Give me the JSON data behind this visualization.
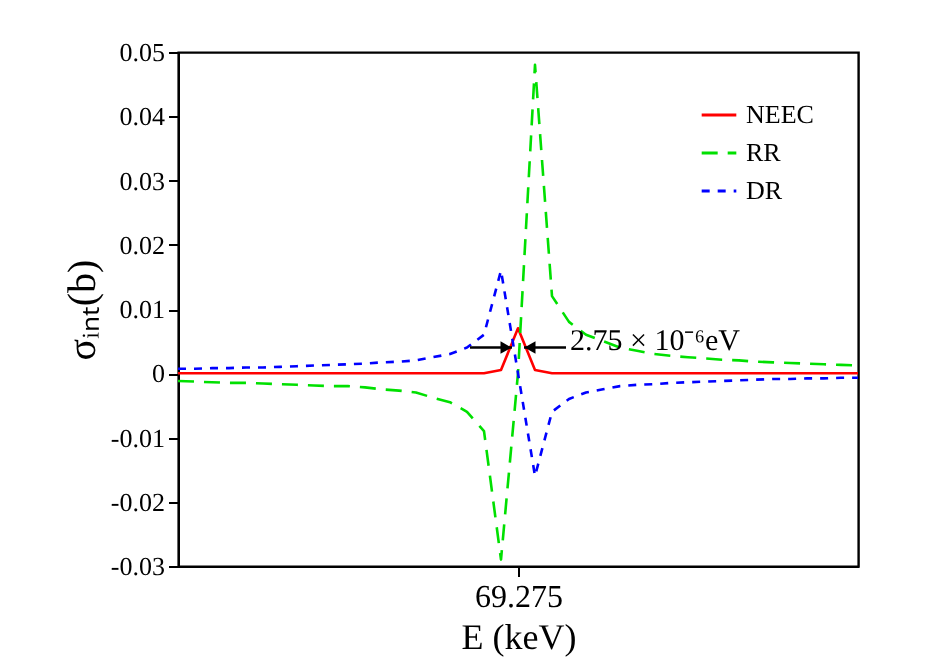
{
  "chart_data": {
    "type": "line",
    "xlabel": "E (keV)",
    "ylabel": "σᵢₙₜ(b)",
    "categories": [
      null,
      null,
      null,
      null,
      null,
      null,
      null,
      null,
      null,
      null,
      null,
      null,
      null,
      null,
      null,
      null,
      null,
      null,
      null,
      null,
      "69.275",
      null,
      null,
      null,
      null,
      null,
      null,
      null,
      null,
      null,
      null,
      null,
      null,
      null,
      null,
      null,
      null,
      null,
      null,
      null,
      null
    ],
    "series": [
      {
        "name": "NEEC",
        "color": "#ff0000",
        "line_style": "solid",
        "values": [
          0,
          0,
          0,
          0,
          0,
          0,
          0,
          0,
          0,
          0,
          0,
          0,
          0,
          0,
          0,
          0,
          0,
          0,
          0,
          0.0005,
          0.007,
          0.0005,
          0,
          0,
          0,
          0,
          0,
          0,
          0,
          0,
          0,
          0,
          0,
          0,
          0,
          0,
          0,
          0,
          0,
          0,
          0
        ]
      },
      {
        "name": "RR",
        "color": "#00e000",
        "line_style": "dashed",
        "values": [
          -0.0012,
          -0.0013,
          -0.0014,
          -0.0015,
          -0.0015,
          -0.0016,
          -0.0017,
          -0.0018,
          -0.0019,
          -0.002,
          -0.002,
          -0.0022,
          -0.0025,
          -0.0027,
          -0.003,
          -0.0038,
          -0.0045,
          -0.006,
          -0.009,
          -0.029,
          0,
          0.048,
          0.012,
          0.008,
          0.006,
          0.005,
          0.004,
          0.0035,
          0.003,
          0.0027,
          0.0025,
          0.0023,
          0.0021,
          0.002,
          0.0018,
          0.0017,
          0.0016,
          0.0015,
          0.0014,
          0.0013,
          0.0012
        ]
      },
      {
        "name": "DR",
        "color": "#0000ff",
        "line_style": "dotted",
        "values": [
          0.0007,
          0.0007,
          0.0008,
          0.0008,
          0.0009,
          0.0009,
          0.001,
          0.0011,
          0.0012,
          0.0013,
          0.0014,
          0.0015,
          0.0017,
          0.0018,
          0.002,
          0.0025,
          0.003,
          0.004,
          0.006,
          0.016,
          0,
          -0.016,
          -0.006,
          -0.004,
          -0.003,
          -0.0025,
          -0.002,
          -0.0018,
          -0.0017,
          -0.0015,
          -0.0014,
          -0.0013,
          -0.0012,
          -0.0011,
          -0.001,
          -0.0009,
          -0.0009,
          -0.0008,
          -0.0008,
          -0.0007,
          -0.0007
        ]
      }
    ],
    "ylim": [
      -0.03,
      0.05
    ],
    "yticks": [
      -0.03,
      -0.02,
      -0.01,
      0,
      0.01,
      0.02,
      0.03,
      0.04,
      0.05
    ],
    "annotations": [
      {
        "text": "2.75 × 10⁻⁶eV",
        "x": "69.275",
        "y": 0.004
      }
    ],
    "grid": false,
    "legend": "top right"
  }
}
